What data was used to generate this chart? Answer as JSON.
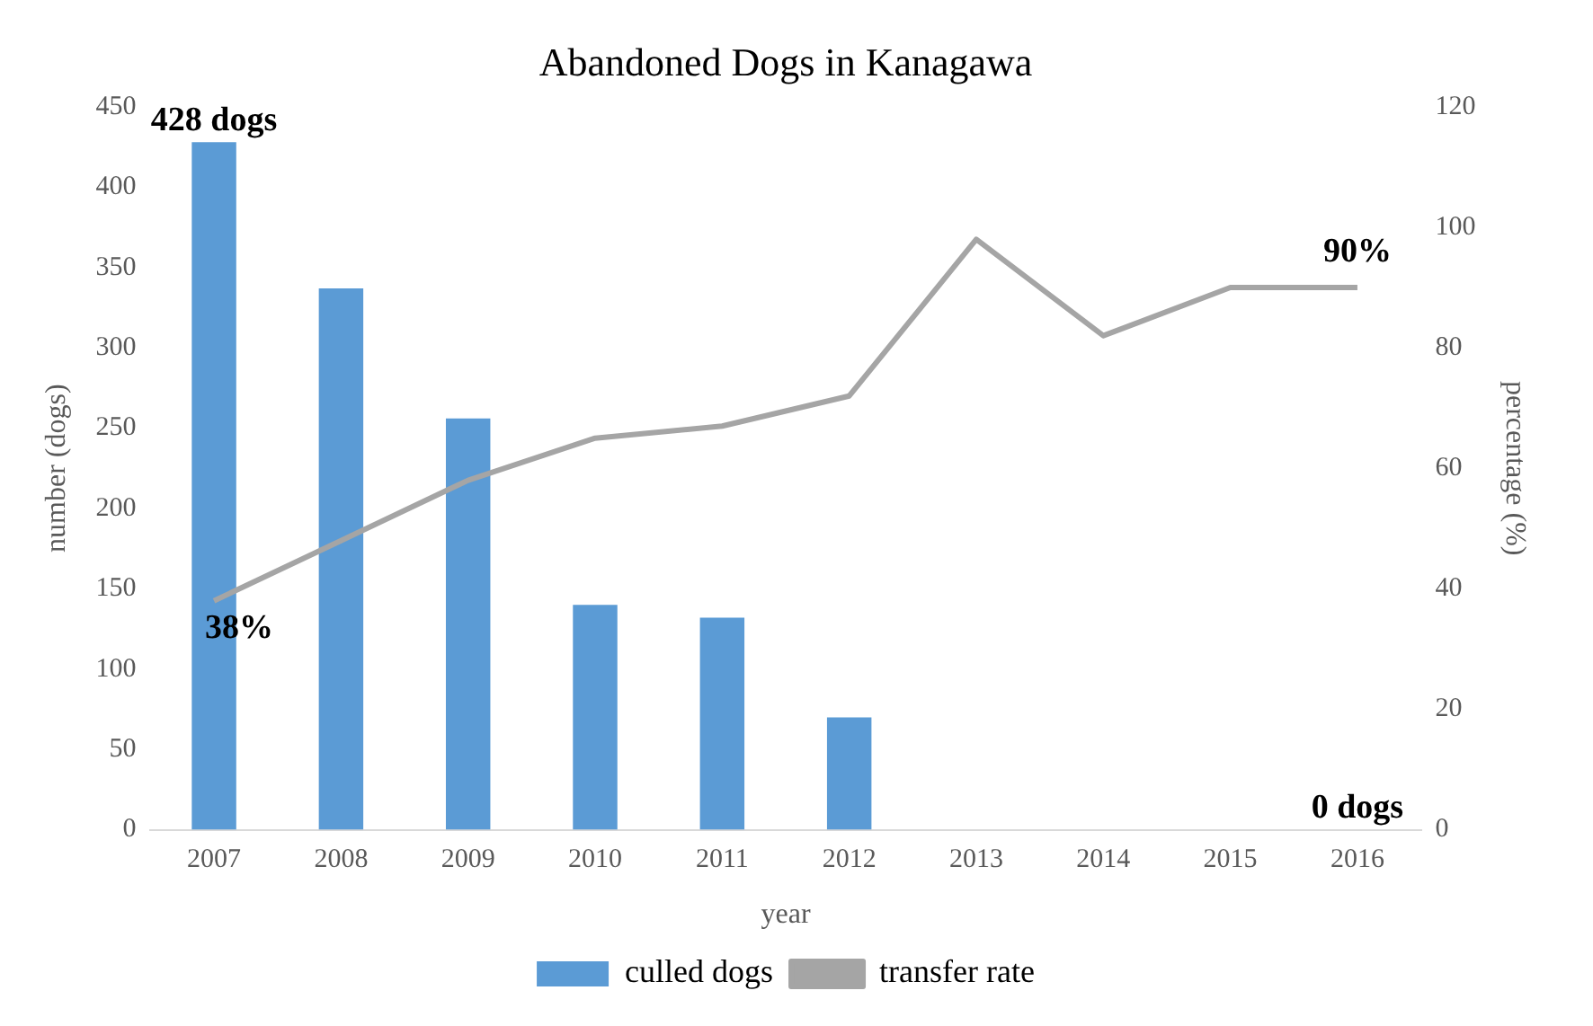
{
  "chart_data": {
    "type": "bar",
    "title": "Abandoned Dogs in Kanagawa",
    "xlabel": "year",
    "ylabel": "number (dogs)",
    "y2label": "percentage (%)",
    "categories": [
      "2007",
      "2008",
      "2009",
      "2010",
      "2011",
      "2012",
      "2013",
      "2014",
      "2015",
      "2016"
    ],
    "series": [
      {
        "name": "culled dogs",
        "color": "#5b9bd5",
        "values": [
          428,
          337,
          256,
          140,
          132,
          70,
          0,
          0,
          0,
          0
        ],
        "value_labels": [
          "428 dogs",
          null,
          null,
          null,
          null,
          null,
          null,
          null,
          null,
          "0 dogs"
        ]
      },
      {
        "name": "transfer rate",
        "type": "line",
        "axis": "y2",
        "color": "#a5a5a5",
        "values": [
          38,
          48,
          58,
          65,
          67,
          72,
          98,
          82,
          90,
          90
        ],
        "value_labels": [
          "38%",
          null,
          null,
          null,
          null,
          null,
          null,
          null,
          null,
          "90%"
        ]
      }
    ],
    "ylim": [
      0,
      450
    ],
    "yticks": [
      0,
      50,
      100,
      150,
      200,
      250,
      300,
      350,
      400,
      450
    ],
    "y2lim": [
      0,
      120
    ],
    "y2ticks": [
      0,
      20,
      40,
      60,
      80,
      100,
      120
    ],
    "grid": false,
    "legend": "bottom",
    "marker": "none"
  }
}
